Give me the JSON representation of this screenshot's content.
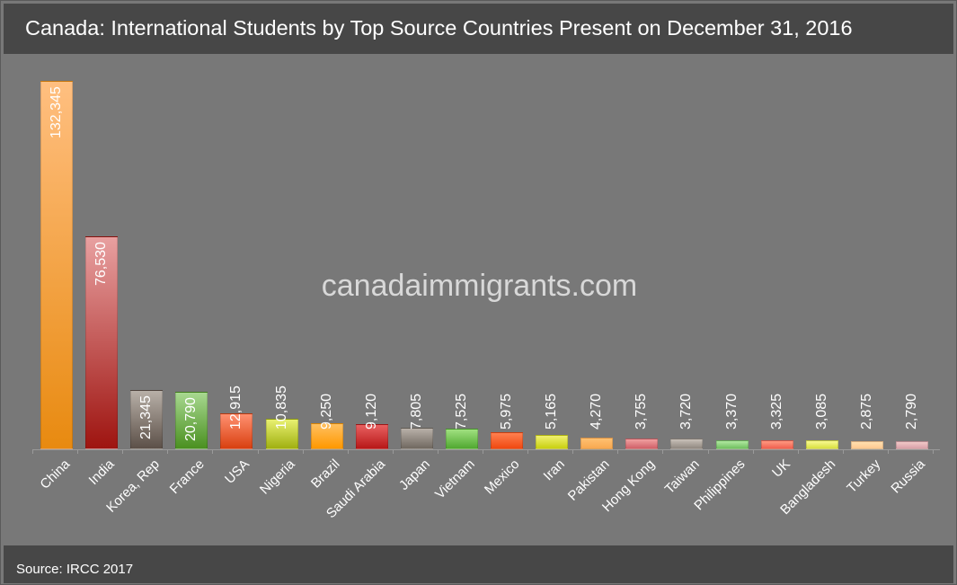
{
  "title": "Canada: International Students by Top Source Countries Present on December 31, 2016",
  "watermark": "canadaimmigrants.com",
  "source": "Source: IRCC 2017",
  "chart_data": {
    "type": "bar",
    "title": "Canada: International Students by Top Source Countries Present on December 31, 2016",
    "xlabel": "",
    "ylabel": "",
    "grid": false,
    "legend": "none",
    "categories": [
      "China",
      "India",
      "Korea, Rep",
      "France",
      "USA",
      "Nigeria",
      "Brazil",
      "Saudi Arabia",
      "Japan",
      "Vietnam",
      "Mexico",
      "Iran",
      "Pakistan",
      "Hong Kong",
      "Taiwan",
      "Philippines",
      "UK",
      "Bangladesh",
      "Turkey",
      "Russia"
    ],
    "values": [
      132345,
      76530,
      21345,
      20790,
      12915,
      10835,
      9250,
      9120,
      7805,
      7525,
      5975,
      5165,
      4270,
      3755,
      3720,
      3370,
      3325,
      3085,
      2875,
      2790
    ],
    "value_labels": [
      "132,345",
      "76,530",
      "21,345",
      "20,790",
      "12,915",
      "10,835",
      "9,250",
      "9,120",
      "7,805",
      "7,525",
      "5,975",
      "5,165",
      "4,270",
      "3,755",
      "3,720",
      "3,370",
      "3,325",
      "3,085",
      "2,875",
      "2,790"
    ],
    "colors": [
      [
        "#ffbf80",
        "#e88a10"
      ],
      [
        "#e8a0a0",
        "#9e1410"
      ],
      [
        "#b8b0a8",
        "#5c5048"
      ],
      [
        "#a8d890",
        "#4a9020"
      ],
      [
        "#ff9070",
        "#d84010"
      ],
      [
        "#e8f070",
        "#a0b010"
      ],
      [
        "#ffc060",
        "#ff9800"
      ],
      [
        "#e86060",
        "#b81818"
      ],
      [
        "#b8b0a8",
        "#706860"
      ],
      [
        "#a0e080",
        "#50a830"
      ],
      [
        "#ff8050",
        "#f04810"
      ],
      [
        "#f0f070",
        "#c8d010"
      ],
      [
        "#ffc070",
        "#f8a850"
      ],
      [
        "#f0a0a0",
        "#d06068"
      ],
      [
        "#c8c0b8",
        "#908880"
      ],
      [
        "#b0e8a0",
        "#70c060"
      ],
      [
        "#ff9880",
        "#f06050"
      ],
      [
        "#f8f890",
        "#d8e040"
      ],
      [
        "#ffe0b0",
        "#ffc890"
      ],
      [
        "#f0c8c8",
        "#d8a0a8"
      ]
    ],
    "ylim": [
      0,
      132345
    ]
  }
}
